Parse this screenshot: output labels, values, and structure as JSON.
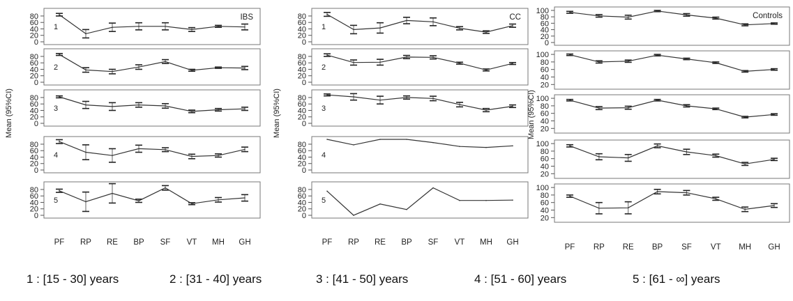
{
  "chart_data": [
    {
      "type": "line",
      "group": "IBS",
      "ylabel": "Mean (95%CI)",
      "categories": [
        "PF",
        "RP",
        "RE",
        "BP",
        "SF",
        "VT",
        "MH",
        "GH"
      ],
      "panels": [
        {
          "label": "1",
          "yticks": [
            0,
            20,
            40,
            60,
            80
          ],
          "ylim": [
            0,
            95
          ],
          "values": [
            84,
            25,
            45,
            48,
            48,
            38,
            48,
            46
          ],
          "ci_low": [
            80,
            12,
            32,
            37,
            37,
            32,
            45,
            37
          ],
          "ci_high": [
            88,
            38,
            58,
            59,
            59,
            44,
            51,
            55
          ]
        },
        {
          "label": "2",
          "yticks": [
            0,
            20,
            40,
            60,
            80
          ],
          "ylim": [
            0,
            95
          ],
          "values": [
            86,
            38,
            33,
            47,
            64,
            37,
            45,
            44
          ],
          "ci_low": [
            83,
            31,
            26,
            40,
            58,
            34,
            43,
            39
          ],
          "ci_high": [
            89,
            45,
            40,
            54,
            70,
            40,
            47,
            49
          ]
        },
        {
          "label": "3",
          "yticks": [
            0,
            20,
            40,
            60,
            80
          ],
          "ylim": [
            0,
            95
          ],
          "values": [
            82,
            57,
            52,
            57,
            54,
            37,
            42,
            45
          ],
          "ci_low": [
            79,
            46,
            40,
            50,
            47,
            33,
            38,
            40
          ],
          "ci_high": [
            85,
            68,
            64,
            64,
            61,
            41,
            46,
            50
          ]
        },
        {
          "label": "4",
          "yticks": [
            0,
            20,
            40,
            60,
            80
          ],
          "ylim": [
            0,
            95
          ],
          "values": [
            88,
            55,
            45,
            66,
            63,
            42,
            45,
            64
          ],
          "ci_low": [
            82,
            32,
            24,
            55,
            57,
            35,
            40,
            57
          ],
          "ci_high": [
            94,
            78,
            66,
            77,
            69,
            49,
            50,
            71
          ]
        },
        {
          "label": "5",
          "yticks": [
            0,
            20,
            40,
            60,
            80
          ],
          "ylim": [
            0,
            95
          ],
          "values": [
            76,
            42,
            68,
            45,
            85,
            36,
            48,
            54
          ],
          "ci_low": [
            71,
            12,
            38,
            40,
            78,
            33,
            41,
            44
          ],
          "ci_high": [
            81,
            72,
            98,
            50,
            92,
            39,
            55,
            64
          ]
        }
      ]
    },
    {
      "type": "line",
      "group": "CC",
      "ylabel": "Mean (95%CI)",
      "categories": [
        "PF",
        "RP",
        "RE",
        "BP",
        "SF",
        "VT",
        "MH",
        "GH"
      ],
      "panels": [
        {
          "label": "1",
          "yticks": [
            0,
            20,
            40,
            60,
            80
          ],
          "ylim": [
            0,
            95
          ],
          "values": [
            85,
            38,
            43,
            66,
            62,
            42,
            30,
            50
          ],
          "ci_low": [
            79,
            25,
            27,
            56,
            50,
            37,
            26,
            45
          ],
          "ci_high": [
            91,
            51,
            59,
            76,
            74,
            47,
            34,
            55
          ]
        },
        {
          "label": "2",
          "yticks": [
            0,
            20,
            40,
            60,
            80
          ],
          "ylim": [
            0,
            95
          ],
          "values": [
            84,
            61,
            62,
            78,
            77,
            59,
            38,
            58
          ],
          "ci_low": [
            80,
            53,
            53,
            73,
            72,
            56,
            35,
            55
          ],
          "ci_high": [
            88,
            69,
            71,
            83,
            82,
            62,
            41,
            61
          ]
        },
        {
          "label": "3",
          "yticks": [
            0,
            20,
            40,
            60,
            80
          ],
          "ylim": [
            0,
            95
          ],
          "values": [
            88,
            82,
            72,
            80,
            77,
            58,
            41,
            53
          ],
          "ci_low": [
            85,
            72,
            60,
            75,
            70,
            51,
            36,
            49
          ],
          "ci_high": [
            91,
            92,
            84,
            85,
            84,
            65,
            46,
            57
          ]
        },
        {
          "label": "4",
          "yticks": [
            0,
            20,
            40,
            60,
            80
          ],
          "ylim": [
            0,
            95
          ],
          "values": [
            95,
            78,
            95,
            95,
            85,
            73,
            70,
            75
          ]
        },
        {
          "label": "5",
          "yticks": [
            0,
            20,
            40,
            60,
            80
          ],
          "ylim": [
            0,
            95
          ],
          "values": [
            75,
            0,
            35,
            18,
            85,
            46,
            46,
            47
          ]
        }
      ]
    },
    {
      "type": "line",
      "group": "Controls",
      "ylabel": "Mean (95%CI)",
      "categories": [
        "PF",
        "RP",
        "RE",
        "BP",
        "SF",
        "VT",
        "MH",
        "GH"
      ],
      "panels": [
        {
          "label": "",
          "yticks": [
            0,
            20,
            40,
            60,
            80,
            100
          ],
          "ylim": [
            0,
            102
          ],
          "values": [
            94,
            83,
            79,
            98,
            86,
            76,
            55,
            59
          ],
          "ci_low": [
            91,
            79,
            73,
            96,
            82,
            73,
            52,
            57
          ],
          "ci_high": [
            97,
            87,
            85,
            100,
            90,
            79,
            58,
            61
          ]
        },
        {
          "label": "",
          "yticks": [
            20,
            40,
            60,
            80,
            100
          ],
          "ylim": [
            15,
            102
          ],
          "values": [
            99,
            80,
            82,
            98,
            88,
            78,
            55,
            60
          ],
          "ci_low": [
            97,
            77,
            79,
            96,
            86,
            76,
            53,
            58
          ],
          "ci_high": [
            101,
            83,
            85,
            100,
            90,
            80,
            57,
            62
          ]
        },
        {
          "label": "",
          "yticks": [
            20,
            40,
            60,
            80,
            100
          ],
          "ylim": [
            15,
            102
          ],
          "values": [
            95,
            74,
            75,
            95,
            80,
            72,
            50,
            57
          ],
          "ci_low": [
            93,
            70,
            71,
            93,
            77,
            70,
            48,
            55
          ],
          "ci_high": [
            97,
            78,
            79,
            97,
            83,
            74,
            52,
            59
          ]
        },
        {
          "label": "",
          "yticks": [
            20,
            40,
            60,
            80,
            100
          ],
          "ylim": [
            15,
            102
          ],
          "values": [
            94,
            65,
            62,
            94,
            78,
            68,
            46,
            58
          ],
          "ci_low": [
            91,
            57,
            53,
            89,
            71,
            64,
            42,
            55
          ],
          "ci_high": [
            97,
            73,
            71,
            99,
            85,
            72,
            50,
            61
          ]
        },
        {
          "label": "",
          "yticks": [
            20,
            40,
            60,
            80,
            100
          ],
          "ylim": [
            15,
            102
          ],
          "values": [
            77,
            45,
            46,
            89,
            86,
            70,
            42,
            52
          ],
          "ci_low": [
            74,
            30,
            30,
            83,
            80,
            66,
            36,
            47
          ],
          "ci_high": [
            80,
            60,
            62,
            95,
            92,
            74,
            48,
            57
          ]
        }
      ]
    }
  ],
  "legend": {
    "band1": "1 : [15 - 30] years",
    "band2": "2 : [31 - 40] years",
    "band3": "3 : [41 - 50] years",
    "band4": "4 : [51 - 60] years",
    "band5": "5 : [61 - ∞] years"
  }
}
